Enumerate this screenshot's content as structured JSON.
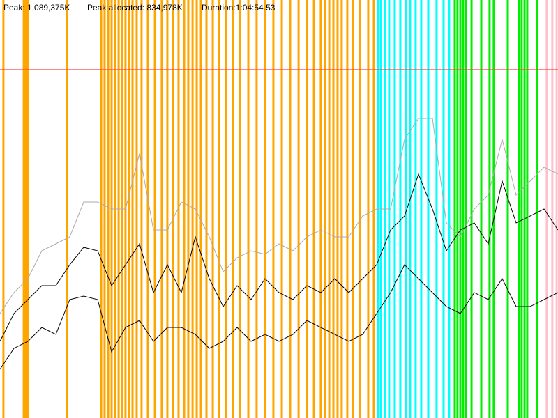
{
  "header": {
    "peak": "Peak: 1,089,375K",
    "peak_allocated": "Peak allocated: 834,978K",
    "duration": "Duration:1:04:54.53"
  },
  "chart_data": {
    "type": "line",
    "xlim": [
      0,
      3894.53
    ],
    "ylim": [
      0,
      1307250
    ],
    "reference_line": {
      "value": 1089375,
      "color": "#ff4040"
    },
    "events": [
      {
        "color": "#ffa500",
        "x": [
          24,
          166,
          180,
          195,
          467,
          706,
          730,
          755,
          779,
          803,
          828,
          852,
          876,
          901,
          925,
          954,
          988,
          1032,
          1081,
          1129,
          1168,
          1207,
          1246,
          1285,
          1314,
          1344,
          1373,
          1402,
          1441,
          1485,
          1529,
          1577,
          1626,
          1675,
          1733,
          1791,
          1850,
          1908,
          1967,
          2025,
          2084,
          2142,
          2191,
          2239,
          2268,
          2298,
          2327,
          2356,
          2385,
          2424,
          2463,
          2512,
          2570,
          2609
        ]
      },
      {
        "color": "#00ffff",
        "x": [
          2638,
          2658,
          2687,
          2716,
          2755,
          2794,
          2833,
          2862,
          2901,
          2940,
          2989,
          3047,
          3096,
          3135
        ]
      },
      {
        "color": "#00ee00",
        "x": [
          3174,
          3193,
          3213,
          3232,
          3252,
          3291,
          3359,
          3417,
          3446,
          3544,
          3622,
          3641,
          3661,
          3680,
          3748
        ]
      },
      {
        "color": "#ffc0cb",
        "x": [
          3816,
          3855,
          3885
        ]
      }
    ],
    "x": [
      0,
      97.4,
      194.7,
      292.1,
      389.5,
      486.8,
      584.2,
      681.5,
      778.9,
      876.3,
      973.6,
      1071,
      1168.4,
      1265.7,
      1363.1,
      1460.5,
      1557.8,
      1655.2,
      1752.5,
      1849.9,
      1947.3,
      2044.6,
      2142,
      2239.4,
      2336.7,
      2434.1,
      2531.5,
      2628.8,
      2726.2,
      2823.6,
      2920.9,
      3018.3,
      3115.6,
      3213,
      3310.4,
      3407.7,
      3505.1,
      3602.5,
      3699.8,
      3797.2,
      3894.5
    ],
    "series": [
      {
        "color": "#aaaaaa",
        "values": [
          326800,
          392200,
          435800,
          522900,
          544700,
          566500,
          675400,
          675400,
          653600,
          653600,
          827900,
          588300,
          588300,
          675400,
          653600,
          566500,
          457500,
          501100,
          522900,
          512000,
          544700,
          522900,
          566500,
          588300,
          566500,
          566500,
          631800,
          653600,
          653600,
          871500,
          936900,
          936900,
          610100,
          566500,
          653600,
          697200,
          871500,
          697200,
          740800,
          784400,
          762600
        ]
      },
      {
        "color": "#000000",
        "values": [
          239700,
          326800,
          370400,
          414000,
          414000,
          479300,
          533800,
          522900,
          414000,
          479300,
          544700,
          392200,
          479300,
          392200,
          566500,
          435800,
          348600,
          414000,
          370400,
          435800,
          392200,
          370400,
          414000,
          392200,
          435800,
          392200,
          435800,
          479300,
          588300,
          631800,
          762600,
          653600,
          522900,
          588300,
          610100,
          544700,
          740800,
          610100,
          631800,
          653600,
          588300
        ]
      },
      {
        "color": "#000000",
        "values": [
          152500,
          217900,
          239700,
          283200,
          261500,
          370400,
          381300,
          370400,
          207000,
          283200,
          305000,
          239700,
          283200,
          283200,
          261500,
          217900,
          239700,
          283200,
          239700,
          261500,
          239700,
          261500,
          305000,
          283200,
          261500,
          239700,
          261500,
          326800,
          392200,
          479300,
          435800,
          392200,
          348600,
          326800,
          392200,
          370400,
          435800,
          348600,
          348600,
          370400,
          392200
        ]
      }
    ]
  }
}
